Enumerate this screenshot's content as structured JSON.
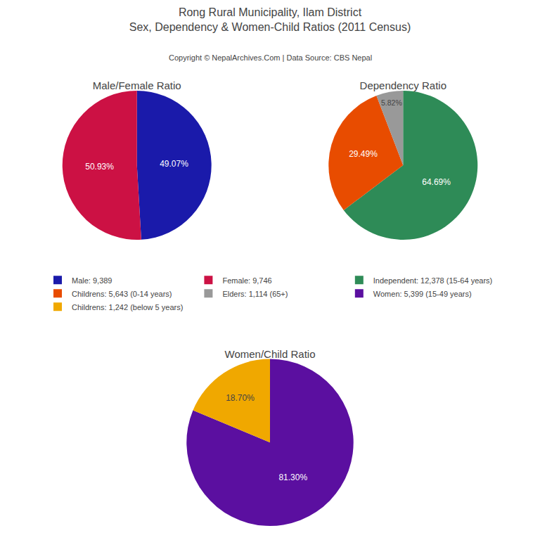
{
  "title": "Rong Rural Municipality, Ilam District",
  "subtitle": "Sex, Dependency & Women-Child Ratios (2011 Census)",
  "annotations": [
    "Copyright © NepalArchives.Com | Data Source: CBS Nepal"
  ],
  "chart_data": [
    {
      "type": "pie",
      "title": "Male/Female Ratio",
      "categories": [
        "Male: 9,389",
        "Female: 9,746"
      ],
      "values": [
        49.07,
        50.93
      ],
      "value_labels": [
        "49.07%",
        "50.93%"
      ],
      "colors": [
        "#1a1aaa",
        "#cc1144"
      ],
      "data_labels": true,
      "legend": "center"
    },
    {
      "type": "pie",
      "title": "Dependency Ratio",
      "categories": [
        "Independent: 12,378 (15-64 years)",
        "Childrens: 5,643 (0-14 years)",
        "Elders: 1,114 (65+)"
      ],
      "values": [
        64.69,
        29.49,
        5.82
      ],
      "value_labels": [
        "64.69%",
        "29.49%",
        "5.82%"
      ],
      "colors": [
        "#2e8b57",
        "#e84c00",
        "#999999"
      ],
      "data_labels": true,
      "legend": "center"
    },
    {
      "type": "pie",
      "title": "Women/Child Ratio",
      "categories": [
        "Women: 5,399 (15-49 years)",
        "Childrens: 1,242 (below 5 years)"
      ],
      "values": [
        81.3,
        18.7
      ],
      "value_labels": [
        "81.30%",
        "18.70%"
      ],
      "colors": [
        "#5b0fa0",
        "#f0a800"
      ],
      "data_labels": true,
      "legend": "center"
    }
  ]
}
